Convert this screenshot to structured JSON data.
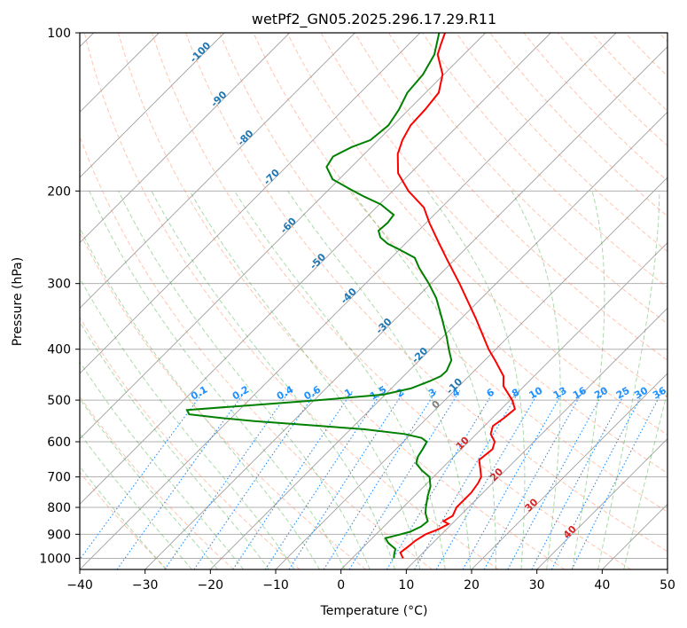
{
  "chart_data": {
    "type": "line",
    "title": "wetPf2_GN05.2025.296.17.29.R11",
    "xlabel": "Temperature (°C)",
    "ylabel": "Pressure (hPa)",
    "xlim": [
      -40,
      50
    ],
    "ylim": [
      1050,
      100
    ],
    "y_scale": "log",
    "skew": 45,
    "x_ticks": [
      -40,
      -30,
      -20,
      -10,
      0,
      10,
      20,
      30,
      40,
      50
    ],
    "y_ticks": [
      100,
      200,
      300,
      400,
      500,
      600,
      700,
      800,
      900,
      1000
    ],
    "grid": true,
    "colors": {
      "temperature": "#ff0000",
      "dewpoint": "#008000",
      "isotherm": "#808080",
      "dry_adiabat": "#ff7f50",
      "moist_adiabat": "#2ca02c",
      "mixing_ratio": "#1e90ff",
      "frame": "#000000"
    },
    "series": [
      {
        "key": "temperature",
        "points": [
          [
            1000,
            7.8
          ],
          [
            975,
            6.5
          ],
          [
            950,
            6.8
          ],
          [
            925,
            7.0
          ],
          [
            900,
            7.6
          ],
          [
            880,
            8.8
          ],
          [
            860,
            9.5
          ],
          [
            850,
            8.3
          ],
          [
            830,
            8.9
          ],
          [
            800,
            8.2
          ],
          [
            750,
            8.2
          ],
          [
            720,
            7.8
          ],
          [
            700,
            7.3
          ],
          [
            675,
            5.9
          ],
          [
            650,
            4.4
          ],
          [
            620,
            4.8
          ],
          [
            600,
            4.0
          ],
          [
            580,
            2.2
          ],
          [
            560,
            1.3
          ],
          [
            540,
            1.8
          ],
          [
            520,
            2.1
          ],
          [
            500,
            0.3
          ],
          [
            470,
            -3.2
          ],
          [
            450,
            -4.7
          ],
          [
            420,
            -8.4
          ],
          [
            400,
            -11.1
          ],
          [
            350,
            -17.7
          ],
          [
            300,
            -25.6
          ],
          [
            270,
            -31.2
          ],
          [
            250,
            -35.2
          ],
          [
            230,
            -39.5
          ],
          [
            215,
            -42.7
          ],
          [
            200,
            -47.6
          ],
          [
            185,
            -51.9
          ],
          [
            170,
            -54.9
          ],
          [
            160,
            -56.3
          ],
          [
            150,
            -57.3
          ],
          [
            140,
            -57.5
          ],
          [
            130,
            -58.0
          ],
          [
            120,
            -60.2
          ],
          [
            110,
            -64.0
          ],
          [
            105,
            -65.1
          ],
          [
            100,
            -66.2
          ]
        ]
      },
      {
        "key": "dewpoint",
        "points": [
          [
            1000,
            6.4
          ],
          [
            985,
            5.9
          ],
          [
            960,
            5.2
          ],
          [
            935,
            3.2
          ],
          [
            915,
            2.0
          ],
          [
            905,
            3.2
          ],
          [
            890,
            4.8
          ],
          [
            870,
            5.7
          ],
          [
            850,
            5.9
          ],
          [
            820,
            4.3
          ],
          [
            800,
            3.5
          ],
          [
            760,
            2.0
          ],
          [
            730,
            1.0
          ],
          [
            700,
            -0.6
          ],
          [
            680,
            -2.8
          ],
          [
            660,
            -4.7
          ],
          [
            640,
            -5.5
          ],
          [
            620,
            -5.9
          ],
          [
            600,
            -6.4
          ],
          [
            590,
            -7.8
          ],
          [
            580,
            -11.0
          ],
          [
            568,
            -18.0
          ],
          [
            558,
            -27.0
          ],
          [
            548,
            -36.0
          ],
          [
            540,
            -42.0
          ],
          [
            532,
            -47.0
          ],
          [
            522,
            -48.0
          ],
          [
            512,
            -39.5
          ],
          [
            500,
            -29.3
          ],
          [
            488,
            -20.3
          ],
          [
            475,
            -17.0
          ],
          [
            460,
            -15.2
          ],
          [
            450,
            -14.3
          ],
          [
            440,
            -14.2
          ],
          [
            420,
            -15.1
          ],
          [
            400,
            -17.2
          ],
          [
            380,
            -19.3
          ],
          [
            350,
            -22.9
          ],
          [
            320,
            -26.9
          ],
          [
            300,
            -30.3
          ],
          [
            280,
            -34.2
          ],
          [
            268,
            -36.4
          ],
          [
            258,
            -40.2
          ],
          [
            252,
            -42.7
          ],
          [
            245,
            -44.8
          ],
          [
            238,
            -46.1
          ],
          [
            230,
            -45.9
          ],
          [
            222,
            -46.2
          ],
          [
            212,
            -49.8
          ],
          [
            205,
            -53.5
          ],
          [
            198,
            -57.0
          ],
          [
            190,
            -61.0
          ],
          [
            180,
            -63.8
          ],
          [
            172,
            -64.4
          ],
          [
            165,
            -63.0
          ],
          [
            160,
            -61.2
          ],
          [
            150,
            -60.7
          ],
          [
            140,
            -61.5
          ],
          [
            130,
            -62.8
          ],
          [
            120,
            -63.2
          ],
          [
            110,
            -64.5
          ],
          [
            100,
            -67.1
          ]
        ]
      }
    ],
    "dry_adiabat_label": "-10",
    "dry_adiabat_labels": [
      "-100",
      "-90",
      "-80",
      "-70",
      "-60",
      "-50",
      "-40",
      "-30",
      "-20",
      "-10"
    ],
    "moist_adiabat_labels": [
      "0",
      "10",
      "20",
      "30",
      "40"
    ],
    "mixing_ratio_labels": [
      "0.1",
      "0.2",
      "0.4",
      "0.6",
      "1",
      "1.5",
      "2",
      "3",
      "4",
      "6",
      "8",
      "10",
      "13",
      "16",
      "20",
      "25",
      "30",
      "36"
    ]
  }
}
